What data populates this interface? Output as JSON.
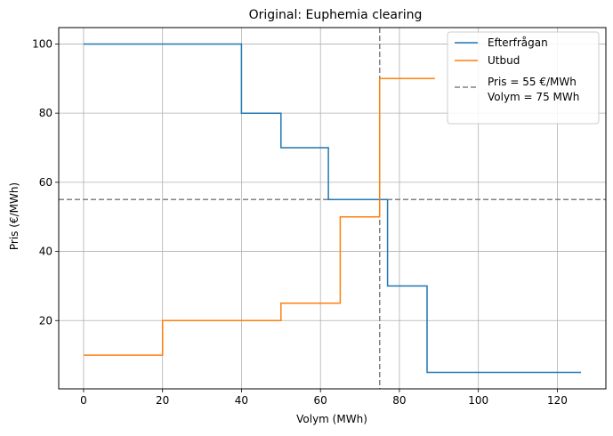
{
  "chart_data": {
    "type": "line",
    "title": "Original: Euphemia clearing",
    "xlabel": "Volym (MWh)",
    "ylabel": "Pris (€/MWh)",
    "xlim": [
      -6.3,
      132.3
    ],
    "ylim": [
      0.25,
      104.75
    ],
    "xticks": [
      0,
      20,
      40,
      60,
      80,
      100,
      120
    ],
    "yticks": [
      20,
      40,
      60,
      80,
      100
    ],
    "grid": true,
    "legend_position": "top-right",
    "colors": {
      "demand": "#1f77b4",
      "supply": "#ff7f0e",
      "reference": "#808080",
      "grid": "#b0b0b0"
    },
    "series": [
      {
        "name": "Efterfrågan",
        "step": "post",
        "points": [
          [
            0,
            100
          ],
          [
            40,
            100
          ],
          [
            40,
            80
          ],
          [
            50,
            80
          ],
          [
            50,
            70
          ],
          [
            62,
            70
          ],
          [
            62,
            55
          ],
          [
            77,
            55
          ],
          [
            77,
            30
          ],
          [
            87,
            30
          ],
          [
            87,
            5
          ],
          [
            126,
            5
          ]
        ]
      },
      {
        "name": "Utbud",
        "step": "post",
        "points": [
          [
            0,
            10
          ],
          [
            20,
            10
          ],
          [
            20,
            20
          ],
          [
            50,
            20
          ],
          [
            50,
            25
          ],
          [
            65,
            25
          ],
          [
            65,
            50
          ],
          [
            75,
            50
          ],
          [
            75,
            90
          ],
          [
            89,
            90
          ]
        ]
      }
    ],
    "reference_lines": [
      {
        "orientation": "horizontal",
        "value": 55,
        "label": "Pris = 55 €/MWh",
        "style": "dashed"
      },
      {
        "orientation": "vertical",
        "value": 75,
        "label": "Volym = 75 MWh",
        "style": "dashed"
      }
    ]
  }
}
